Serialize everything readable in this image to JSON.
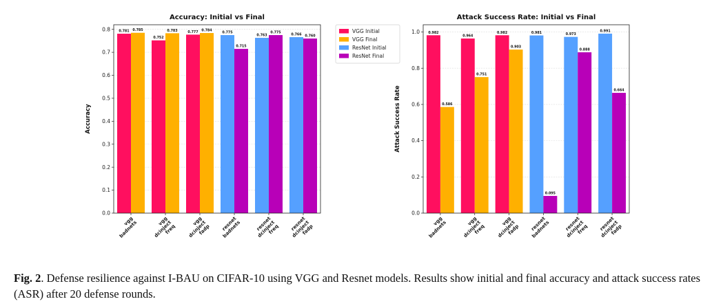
{
  "chart_data": [
    {
      "type": "bar",
      "title": "Accuracy: Initial vs Final",
      "xlabel": "",
      "ylabel": "Accuracy",
      "ylim": [
        0,
        0.82
      ],
      "yticks": [
        "0.0",
        "0.1",
        "0.2",
        "0.3",
        "0.4",
        "0.5",
        "0.6",
        "0.7",
        "0.8"
      ],
      "grid": true,
      "categories": [
        [
          "vgg",
          "badnets"
        ],
        [
          "vgg",
          "dcinject",
          "freq"
        ],
        [
          "vgg",
          "dcinject",
          "fadp"
        ],
        [
          "resnet",
          "badnets"
        ],
        [
          "resnet",
          "dcinject",
          "freq"
        ],
        [
          "resnet",
          "dcinject",
          "fadp"
        ]
      ],
      "bars": [
        {
          "category": 0,
          "series": "VGG Initial",
          "value": 0.781,
          "label": "0.781"
        },
        {
          "category": 0,
          "series": "VGG Final",
          "value": 0.785,
          "label": "0.785"
        },
        {
          "category": 1,
          "series": "VGG Initial",
          "value": 0.752,
          "label": "0.752"
        },
        {
          "category": 1,
          "series": "VGG Final",
          "value": 0.783,
          "label": "0.783"
        },
        {
          "category": 2,
          "series": "VGG Initial",
          "value": 0.777,
          "label": "0.777"
        },
        {
          "category": 2,
          "series": "VGG Final",
          "value": 0.784,
          "label": "0.784"
        },
        {
          "category": 3,
          "series": "ResNet Initial",
          "value": 0.775,
          "label": "0.775"
        },
        {
          "category": 3,
          "series": "ResNet Final",
          "value": 0.715,
          "label": "0.715"
        },
        {
          "category": 4,
          "series": "ResNet Initial",
          "value": 0.763,
          "label": "0.763"
        },
        {
          "category": 4,
          "series": "ResNet Final",
          "value": 0.775,
          "label": "0.775"
        },
        {
          "category": 5,
          "series": "ResNet Initial",
          "value": 0.766,
          "label": "0.766"
        },
        {
          "category": 5,
          "series": "ResNet Final",
          "value": 0.76,
          "label": "0.760"
        }
      ]
    },
    {
      "type": "bar",
      "title": "Attack Success Rate: Initial vs Final",
      "xlabel": "",
      "ylabel": "Attack Success Rate",
      "ylim": [
        0,
        1.04
      ],
      "yticks": [
        "0.0",
        "0.2",
        "0.4",
        "0.6",
        "0.8",
        "1.0"
      ],
      "grid": true,
      "categories": [
        [
          "vgg",
          "badnets"
        ],
        [
          "vgg",
          "dcinject",
          "freq"
        ],
        [
          "vgg",
          "dcinject",
          "fadp"
        ],
        [
          "resnet",
          "badnets"
        ],
        [
          "resnet",
          "dcinject",
          "freq"
        ],
        [
          "resnet",
          "dcinject",
          "fadp"
        ]
      ],
      "bars": [
        {
          "category": 0,
          "series": "VGG Initial",
          "value": 0.982,
          "label": "0.982"
        },
        {
          "category": 0,
          "series": "VGG Final",
          "value": 0.586,
          "label": "0.586"
        },
        {
          "category": 1,
          "series": "VGG Initial",
          "value": 0.964,
          "label": "0.964"
        },
        {
          "category": 1,
          "series": "VGG Final",
          "value": 0.751,
          "label": "0.751"
        },
        {
          "category": 2,
          "series": "VGG Initial",
          "value": 0.982,
          "label": "0.982"
        },
        {
          "category": 2,
          "series": "VGG Final",
          "value": 0.903,
          "label": "0.903"
        },
        {
          "category": 3,
          "series": "ResNet Initial",
          "value": 0.981,
          "label": "0.981"
        },
        {
          "category": 3,
          "series": "ResNet Final",
          "value": 0.095,
          "label": "0.095"
        },
        {
          "category": 4,
          "series": "ResNet Initial",
          "value": 0.973,
          "label": "0.973"
        },
        {
          "category": 4,
          "series": "ResNet Final",
          "value": 0.888,
          "label": "0.888"
        },
        {
          "category": 5,
          "series": "ResNet Initial",
          "value": 0.991,
          "label": "0.991"
        },
        {
          "category": 5,
          "series": "ResNet Final",
          "value": 0.664,
          "label": "0.664"
        }
      ]
    }
  ],
  "legend": {
    "placement": "between-charts-top",
    "items": [
      {
        "name": "VGG Initial",
        "color": "#ff0f5f"
      },
      {
        "name": "VGG Final",
        "color": "#ffb000"
      },
      {
        "name": "ResNet Initial",
        "color": "#55a0ff"
      },
      {
        "name": "ResNet Final",
        "color": "#b800b8"
      }
    ]
  },
  "caption": {
    "label": "Fig. 2",
    "text": ". Defense resilience against I-BAU on CIFAR-10 using VGG and Resnet models. Results show initial and final accuracy and attack success rates (ASR) after 20 defense rounds."
  }
}
